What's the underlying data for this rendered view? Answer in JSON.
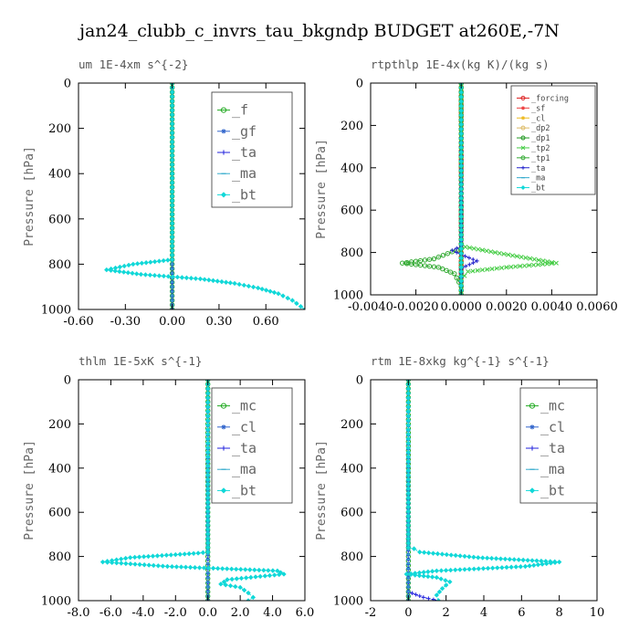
{
  "title": "jan24_clubb_c_invrs_tau_bkgndp  BUDGET at260E,-7N",
  "chart_data": [
    {
      "type": "line",
      "title": "um   1E-4xm  s^{-2}",
      "ylabel": "Pressure [hPa]",
      "xlim": [
        -0.6,
        0.85
      ],
      "ylim": [
        1000,
        0
      ],
      "xticks": [
        -0.6,
        -0.3,
        0.0,
        0.3,
        0.6
      ],
      "xtick_labels": [
        "-0.60",
        "-0.30",
        "0.00",
        "0.30",
        "0.60"
      ],
      "yticks": [
        0,
        200,
        400,
        600,
        800,
        1000
      ],
      "ytick_labels": [
        "0",
        "200",
        "400",
        "600",
        "800",
        "1000"
      ],
      "legend_style": "big",
      "series": [
        {
          "name": "_f",
          "color": "#22aa22",
          "marker": "circle",
          "points": [
            [
              0,
              0
            ],
            [
              0,
              100
            ],
            [
              0,
              200
            ],
            [
              0,
              300
            ],
            [
              0,
              400
            ],
            [
              0,
              500
            ],
            [
              0,
              600
            ],
            [
              0,
              700
            ],
            [
              0,
              800
            ],
            [
              0,
              900
            ],
            [
              0,
              1000
            ]
          ]
        },
        {
          "name": "_gf",
          "color": "#3366cc",
          "marker": "star",
          "points": [
            [
              0,
              0
            ],
            [
              0,
              1000
            ]
          ]
        },
        {
          "name": "_ta",
          "color": "#2222dd",
          "marker": "plus",
          "points": [
            [
              0,
              0
            ],
            [
              0,
              1000
            ]
          ]
        },
        {
          "name": "_ma",
          "color": "#33aacc",
          "marker": "dash",
          "points": [
            [
              0,
              0
            ],
            [
              0,
              1000
            ]
          ]
        },
        {
          "name": "_bt",
          "color": "#11d8d8",
          "marker": "diamond",
          "points": [
            [
              0,
              0
            ],
            [
              0,
              780
            ],
            [
              -0.25,
              800
            ],
            [
              -0.42,
              825
            ],
            [
              -0.2,
              845
            ],
            [
              0.18,
              865
            ],
            [
              0.4,
              885
            ],
            [
              0.55,
              905
            ],
            [
              0.68,
              930
            ],
            [
              0.77,
              960
            ],
            [
              0.85,
              1000
            ]
          ]
        }
      ]
    },
    {
      "type": "line",
      "title": "rtpthlp   1E-4x(kg K)/(kg s)",
      "ylabel": "Pressure [hPa]",
      "xlim": [
        -0.004,
        0.006
      ],
      "ylim": [
        1000,
        0
      ],
      "xticks": [
        -0.004,
        -0.002,
        0.0,
        0.002,
        0.004,
        0.006
      ],
      "xtick_labels": [
        "-0.0040",
        "-0.0020",
        "0.0000",
        "0.0020",
        "0.0040",
        "0.0060"
      ],
      "yticks": [
        0,
        200,
        400,
        600,
        800,
        1000
      ],
      "ytick_labels": [
        "0",
        "200",
        "400",
        "600",
        "800",
        "1000"
      ],
      "legend_style": "small",
      "series": [
        {
          "name": "_forcing",
          "color": "#dd2222",
          "marker": "circle",
          "points": [
            [
              0,
              0
            ],
            [
              0,
              100
            ],
            [
              0,
              200
            ],
            [
              0,
              300
            ],
            [
              0,
              400
            ],
            [
              0,
              500
            ],
            [
              0,
              600
            ],
            [
              0,
              700
            ],
            [
              0,
              800
            ],
            [
              0,
              900
            ],
            [
              0,
              1000
            ]
          ]
        },
        {
          "name": "_sf",
          "color": "#ee4444",
          "marker": "star",
          "points": [
            [
              0,
              0
            ],
            [
              0,
              1000
            ]
          ]
        },
        {
          "name": "_cl",
          "color": "#eebb22",
          "marker": "star",
          "points": [
            [
              0,
              0
            ],
            [
              0,
              1000
            ]
          ]
        },
        {
          "name": "_dp2",
          "color": "#ddbb66",
          "marker": "circle",
          "points": [
            [
              0,
              0
            ],
            [
              0,
              1000
            ]
          ]
        },
        {
          "name": "_dp1",
          "color": "#229922",
          "marker": "circle",
          "points": [
            [
              0,
              0
            ],
            [
              0,
              1000
            ]
          ]
        },
        {
          "name": "_tp2",
          "color": "#44cc44",
          "marker": "cross",
          "points": [
            [
              0,
              0
            ],
            [
              0,
              770
            ],
            [
              0.0015,
              800
            ],
            [
              0.0042,
              850
            ],
            [
              0.002,
              870
            ],
            [
              0.0003,
              890
            ],
            [
              0,
              930
            ],
            [
              0,
              1000
            ]
          ]
        },
        {
          "name": "_tp1",
          "color": "#33aa33",
          "marker": "circle",
          "points": [
            [
              0,
              0
            ],
            [
              0,
              780
            ],
            [
              -0.0012,
              830
            ],
            [
              -0.0026,
              850
            ],
            [
              -0.001,
              870
            ],
            [
              -0.0003,
              900
            ],
            [
              0,
              960
            ],
            [
              0,
              1000
            ]
          ]
        },
        {
          "name": "_ta",
          "color": "#2222cc",
          "marker": "plus",
          "points": [
            [
              0,
              0
            ],
            [
              0,
              770
            ],
            [
              -0.0004,
              790
            ],
            [
              0,
              810
            ],
            [
              0.0007,
              840
            ],
            [
              0.0002,
              865
            ],
            [
              0,
              880
            ],
            [
              0,
              1000
            ]
          ]
        },
        {
          "name": "_ma",
          "color": "#33aacc",
          "marker": "dash",
          "points": [
            [
              0,
              0
            ],
            [
              0,
              1000
            ]
          ]
        },
        {
          "name": "_bt",
          "color": "#11d8d8",
          "marker": "diamond",
          "points": [
            [
              0,
              0
            ],
            [
              0,
              1000
            ]
          ]
        }
      ]
    },
    {
      "type": "line",
      "title": "thlm   1E-5xK  s^{-1}",
      "ylabel": "Pressure [hPa]",
      "xlim": [
        -8,
        6
      ],
      "ylim": [
        1000,
        0
      ],
      "xticks": [
        -8,
        -6,
        -4,
        -2,
        0,
        2,
        4,
        6
      ],
      "xtick_labels": [
        "-8.0",
        "-6.0",
        "-4.0",
        "-2.0",
        "0.0",
        "2.0",
        "4.0",
        "6.0"
      ],
      "yticks": [
        0,
        200,
        400,
        600,
        800,
        1000
      ],
      "ytick_labels": [
        "0",
        "200",
        "400",
        "600",
        "800",
        "1000"
      ],
      "legend_style": "big",
      "series": [
        {
          "name": "_mc",
          "color": "#22aa22",
          "marker": "circle",
          "points": [
            [
              0,
              0
            ],
            [
              0,
              100
            ],
            [
              0,
              200
            ],
            [
              0,
              300
            ],
            [
              0,
              400
            ],
            [
              0,
              500
            ],
            [
              0,
              600
            ],
            [
              0,
              700
            ],
            [
              0,
              800
            ],
            [
              0,
              900
            ],
            [
              0,
              1000
            ]
          ]
        },
        {
          "name": "_cl",
          "color": "#3366cc",
          "marker": "star",
          "points": [
            [
              0,
              0
            ],
            [
              0,
              1000
            ]
          ]
        },
        {
          "name": "_ta",
          "color": "#2222dd",
          "marker": "plus",
          "points": [
            [
              0,
              0
            ],
            [
              0,
              1000
            ]
          ]
        },
        {
          "name": "_ma",
          "color": "#33aacc",
          "marker": "dash",
          "points": [
            [
              0,
              0
            ],
            [
              0,
              1000
            ]
          ]
        },
        {
          "name": "_bt",
          "color": "#11d8d8",
          "marker": "diamond",
          "points": [
            [
              0,
              0
            ],
            [
              0,
              780
            ],
            [
              -0.6,
              785
            ],
            [
              -4.8,
              805
            ],
            [
              -6.5,
              825
            ],
            [
              -2.5,
              845
            ],
            [
              4.3,
              865
            ],
            [
              4.7,
              880
            ],
            [
              1.2,
              905
            ],
            [
              0.8,
              925
            ],
            [
              2.0,
              940
            ],
            [
              2.5,
              965
            ],
            [
              2.8,
              985
            ],
            [
              2.5,
              1000
            ]
          ]
        }
      ]
    },
    {
      "type": "line",
      "title": "rtm   1E-8xkg kg^{-1} s^{-1}",
      "ylabel": "Pressure [hPa]",
      "xlim": [
        -2,
        10
      ],
      "ylim": [
        1000,
        0
      ],
      "xticks": [
        -2,
        0,
        2,
        4,
        6,
        8,
        10
      ],
      "xtick_labels": [
        "-2",
        "0",
        "2",
        "4",
        "6",
        "8",
        "10"
      ],
      "yticks": [
        0,
        200,
        400,
        600,
        800,
        1000
      ],
      "ytick_labels": [
        "0",
        "200",
        "400",
        "600",
        "800",
        "1000"
      ],
      "legend_style": "big",
      "series": [
        {
          "name": "_mc",
          "color": "#22aa22",
          "marker": "circle",
          "points": [
            [
              0,
              0
            ],
            [
              0,
              100
            ],
            [
              0,
              200
            ],
            [
              0,
              300
            ],
            [
              0,
              400
            ],
            [
              0,
              500
            ],
            [
              0,
              600
            ],
            [
              0,
              700
            ],
            [
              0,
              800
            ],
            [
              0,
              900
            ],
            [
              0,
              1000
            ]
          ]
        },
        {
          "name": "_cl",
          "color": "#3366cc",
          "marker": "star",
          "points": [
            [
              0,
              0
            ],
            [
              0,
              1000
            ]
          ]
        },
        {
          "name": "_ta",
          "color": "#2222dd",
          "marker": "plus",
          "points": [
            [
              0,
              0
            ],
            [
              0,
              960
            ],
            [
              0.8,
              985
            ],
            [
              1.6,
              1000
            ]
          ]
        },
        {
          "name": "_ma",
          "color": "#33aacc",
          "marker": "dash",
          "points": [
            [
              0,
              0
            ],
            [
              0,
              1000
            ]
          ]
        },
        {
          "name": "_bt",
          "color": "#11d8d8",
          "marker": "diamond",
          "points": [
            [
              0,
              0
            ],
            [
              0,
              760
            ],
            [
              0.3,
              765
            ],
            [
              0.6,
              780
            ],
            [
              3.7,
              805
            ],
            [
              8.0,
              825
            ],
            [
              6.2,
              845
            ],
            [
              1.5,
              865
            ],
            [
              -0.1,
              880
            ],
            [
              1.5,
              895
            ],
            [
              2.2,
              915
            ],
            [
              1.8,
              945
            ],
            [
              1.5,
              975
            ],
            [
              1.6,
              1000
            ]
          ]
        }
      ]
    }
  ]
}
